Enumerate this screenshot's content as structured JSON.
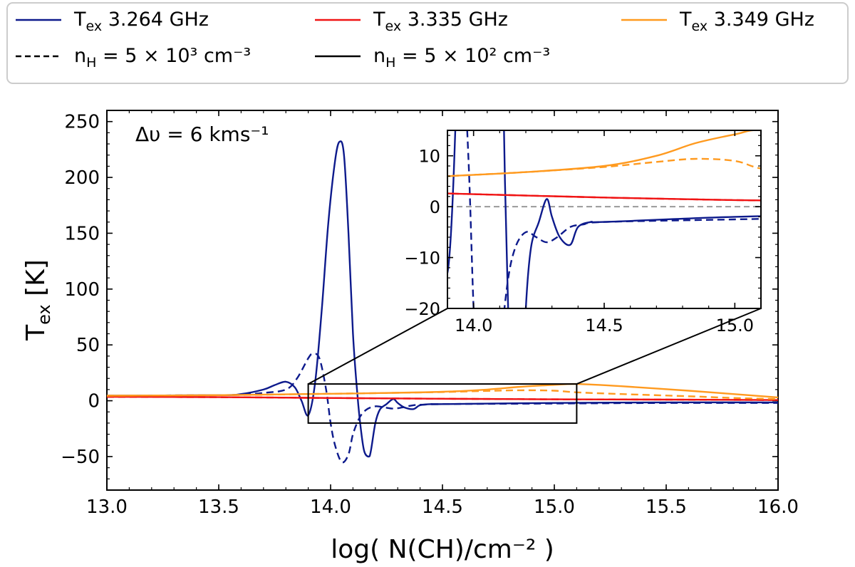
{
  "chart_data": {
    "type": "line",
    "xlabel": "log( N(CH)/cm⁻² )",
    "ylabel": "T_ex [K]",
    "ylabel_main": "T",
    "ylabel_sub": "ex",
    "ylabel_rest": " [K]",
    "xlim": [
      13.0,
      16.0
    ],
    "ylim": [
      -80,
      260
    ],
    "xticks": [
      13.0,
      13.5,
      14.0,
      14.5,
      15.0,
      15.5,
      16.0
    ],
    "xtick_labels": [
      "13.0",
      "13.5",
      "14.0",
      "14.5",
      "15.0",
      "15.5",
      "16.0"
    ],
    "yticks": [
      -50,
      0,
      50,
      100,
      150,
      200,
      250
    ],
    "ytick_labels": [
      "−50",
      "0",
      "50",
      "100",
      "150",
      "200",
      "250"
    ],
    "annotation": "Δυ = 6 kms⁻¹",
    "legend": {
      "position": "top, outside, 3 columns",
      "entries": [
        {
          "main": "T",
          "sub": "ex",
          "rest": " 3.264 GHz",
          "color": "#0d1a8c",
          "style": "solid"
        },
        {
          "main": "T",
          "sub": "ex",
          "rest": " 3.335 GHz",
          "color": "#f01414",
          "style": "solid"
        },
        {
          "main": "T",
          "sub": "ex",
          "rest": " 3.349 GHz",
          "color": "#ff9a1f",
          "style": "solid"
        },
        {
          "main": "n",
          "sub": "H",
          "rest": " = 5 × 10³ cm⁻³",
          "color": "#000000",
          "style": "dashed"
        },
        {
          "main": "n",
          "sub": "H",
          "rest": " = 5 × 10² cm⁻³",
          "color": "#000000",
          "style": "solid"
        }
      ]
    },
    "series": [
      {
        "name": "3.264 GHz, nH=5e2",
        "color": "#0d1a8c",
        "dash": false,
        "x": [
          13.0,
          13.5,
          13.6,
          13.7,
          13.75,
          13.8,
          13.84,
          13.87,
          13.9,
          13.93,
          13.96,
          13.99,
          14.02,
          14.04,
          14.06,
          14.08,
          14.1,
          14.12,
          14.135,
          14.15,
          14.17,
          14.18,
          14.2,
          14.22,
          14.25,
          14.28,
          14.3,
          14.33,
          14.37,
          14.4,
          14.45,
          14.5,
          15.0,
          15.5,
          16.0
        ],
        "y": [
          4.5,
          5,
          6,
          10,
          14,
          17,
          12,
          0,
          -13,
          15,
          80,
          160,
          215,
          232,
          220,
          150,
          60,
          5,
          -25,
          -45,
          -50,
          -45,
          -20,
          -8,
          -3,
          1.5,
          -2,
          -6,
          -7.5,
          -4,
          -3,
          -3,
          -2,
          -1.5,
          -1.5
        ]
      },
      {
        "name": "3.264 GHz, nH=5e3",
        "color": "#0d1a8c",
        "dash": true,
        "x": [
          13.0,
          13.5,
          13.6,
          13.7,
          13.8,
          13.85,
          13.9,
          13.92,
          13.95,
          13.98,
          14.0,
          14.02,
          14.05,
          14.08,
          14.1,
          14.13,
          14.16,
          14.2,
          14.24,
          14.28,
          14.32,
          14.37,
          14.42,
          14.5,
          15.0,
          15.5,
          16.0
        ],
        "y": [
          4.5,
          5,
          5.5,
          7,
          10,
          20,
          38,
          42,
          38,
          10,
          -20,
          -40,
          -55,
          -48,
          -30,
          -15,
          -8,
          -5,
          -6,
          -7,
          -6,
          -4,
          -3.5,
          -3,
          -2.5,
          -2,
          -2
        ]
      },
      {
        "name": "3.335 GHz, nH=5e2",
        "color": "#f01414",
        "dash": false,
        "x": [
          13.0,
          13.5,
          13.9,
          14.5,
          15.0,
          15.5,
          16.0
        ],
        "y": [
          3.5,
          3.2,
          2.6,
          1.8,
          1.3,
          1.0,
          0.6
        ]
      },
      {
        "name": "3.335 GHz, nH=5e3",
        "color": "#f01414",
        "dash": true,
        "x": [
          13.0,
          13.5,
          13.9,
          14.5,
          15.0,
          15.5,
          16.0
        ],
        "y": [
          3.5,
          3.2,
          2.6,
          1.8,
          1.3,
          1.0,
          0.6
        ]
      },
      {
        "name": "3.349 GHz, nH=5e2",
        "color": "#ff9a1f",
        "dash": false,
        "x": [
          13.0,
          13.5,
          13.9,
          14.2,
          14.5,
          14.7,
          14.85,
          15.0,
          15.1,
          15.3,
          15.6,
          15.8,
          16.0
        ],
        "y": [
          4.5,
          5,
          6,
          6.8,
          8,
          10,
          12.5,
          14.2,
          15,
          13,
          9,
          6,
          3
        ]
      },
      {
        "name": "3.349 GHz, nH=5e3",
        "color": "#ff9a1f",
        "dash": true,
        "x": [
          13.0,
          13.5,
          13.9,
          14.2,
          14.5,
          14.7,
          14.85,
          15.0,
          15.1,
          15.3,
          15.6,
          15.8,
          16.0
        ],
        "y": [
          4.5,
          5,
          6,
          6.8,
          7.8,
          8.8,
          9.4,
          9,
          7.5,
          6,
          4,
          2.5,
          1.5
        ]
      }
    ],
    "inset": {
      "xlim": [
        13.9,
        15.1
      ],
      "ylim": [
        -20,
        15
      ],
      "xticks": [
        14.0,
        14.5,
        15.0
      ],
      "xtick_labels": [
        "14.0",
        "14.5",
        "15.0"
      ],
      "yticks": [
        -20,
        -10,
        0,
        10
      ],
      "ytick_labels": [
        "−20",
        "−10",
        "0",
        "10"
      ],
      "zero_line": {
        "y": 0,
        "color": "#999999",
        "style": "dashed"
      }
    }
  }
}
